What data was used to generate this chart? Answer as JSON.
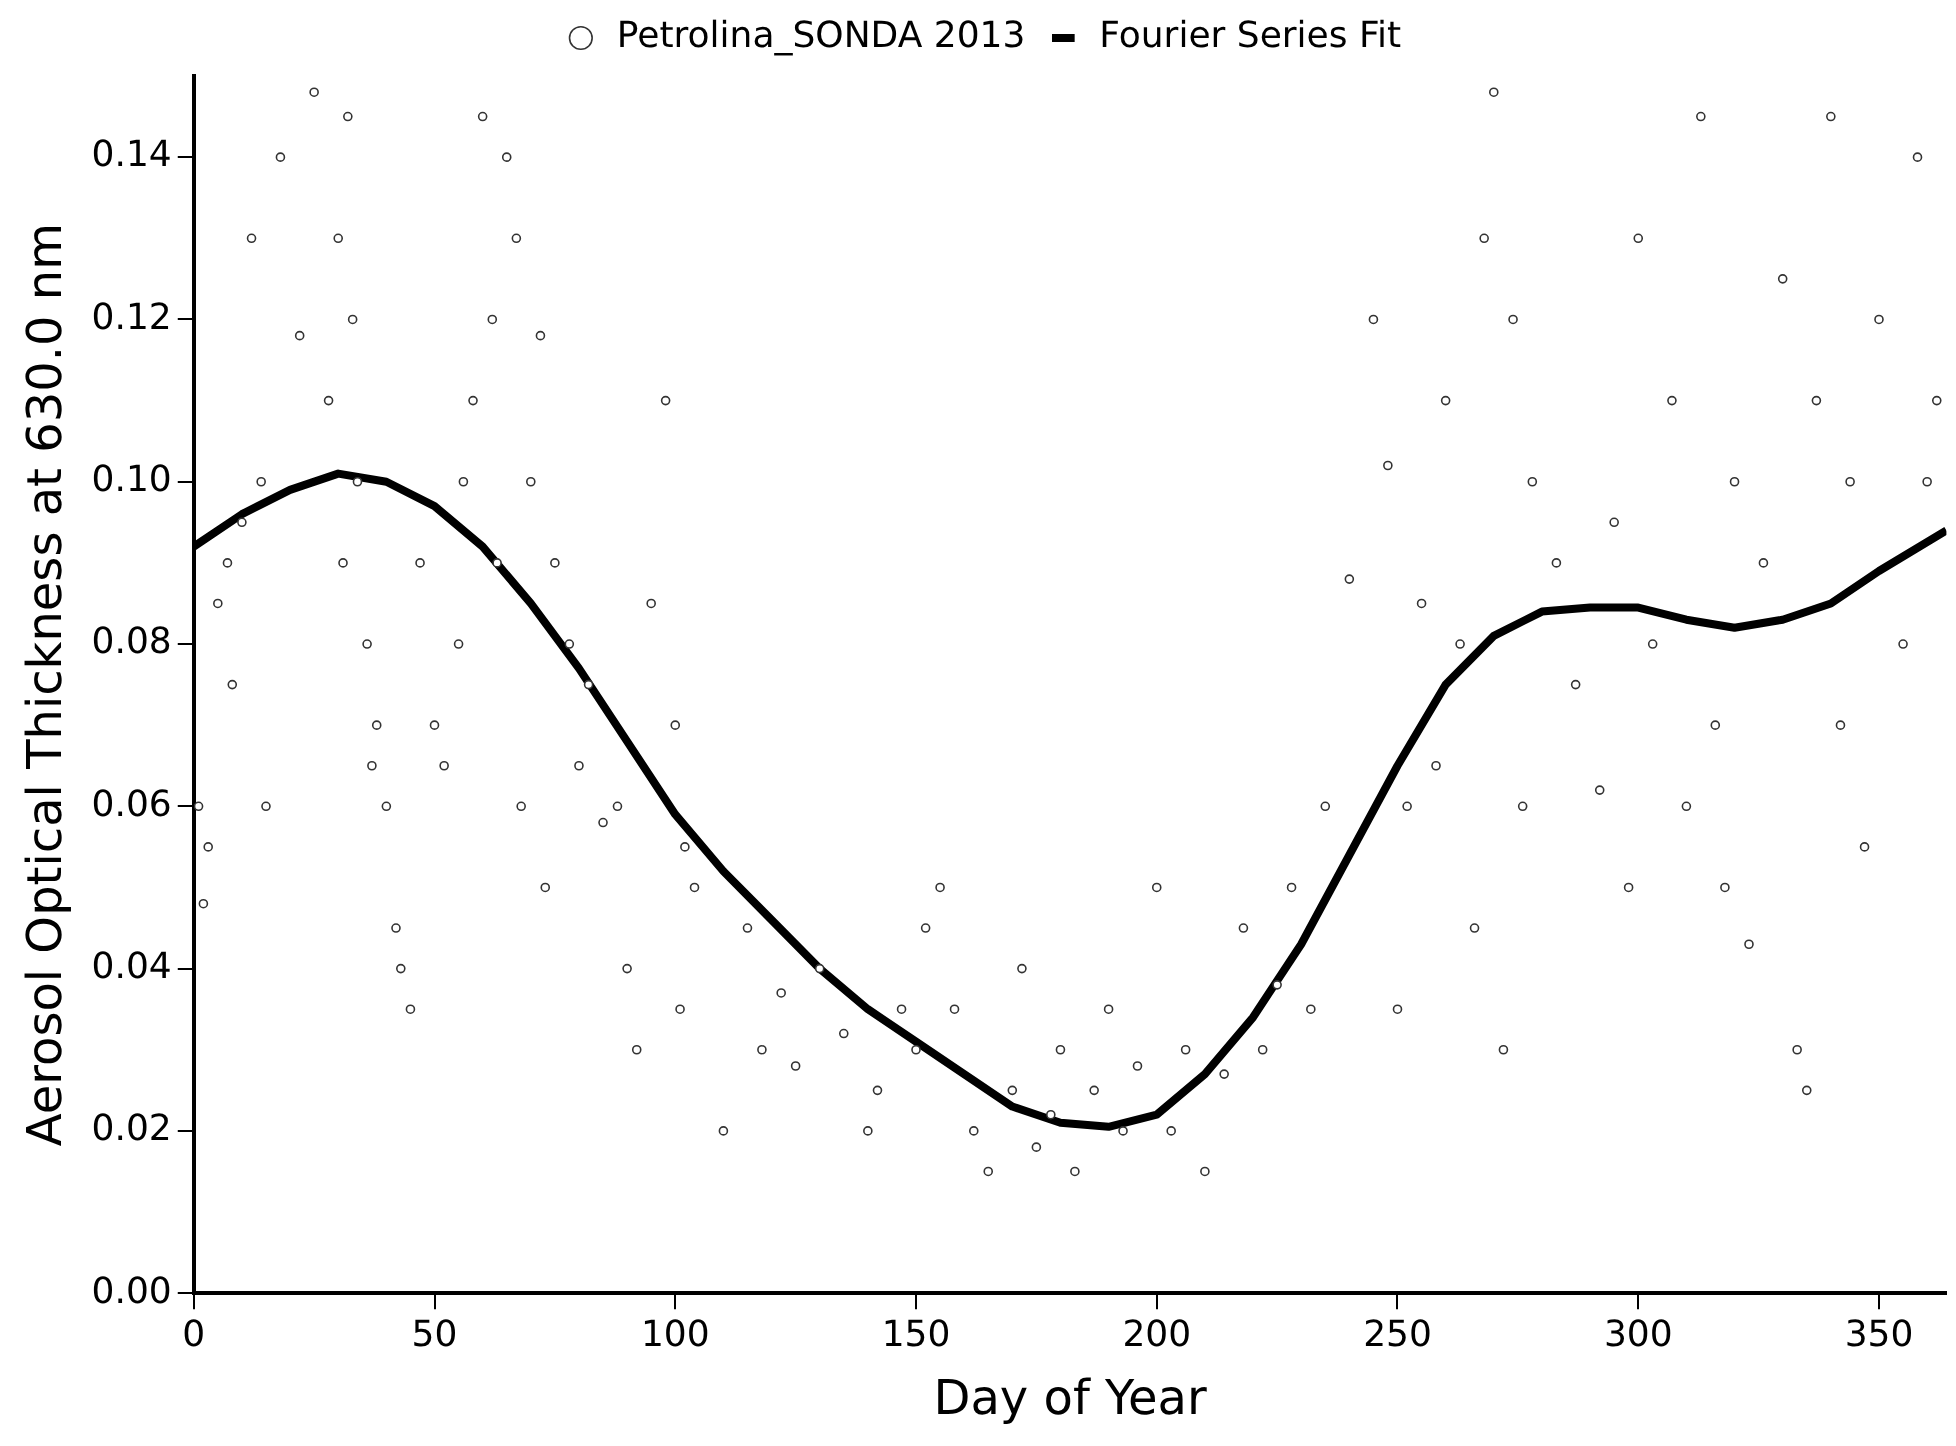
{
  "chart_data": {
    "type": "scatter",
    "xlabel": "Day of Year",
    "ylabel": "Aerosol Optical Thickness at 630.0 nm",
    "xlim": [
      0,
      364
    ],
    "xticks": [
      0,
      50,
      100,
      150,
      200,
      250,
      300,
      350
    ],
    "ylim": [
      0,
      0.15
    ],
    "yticks": [
      {
        "value": 0,
        "label": "0.00"
      },
      0.02,
      0.04,
      0.06,
      0.08,
      {
        "value": 0.1,
        "label": "0.10"
      },
      0.12,
      0.14
    ],
    "grid": false,
    "legend": "top",
    "marker": "circle",
    "series": [
      {
        "name": "Petrolina_SONDA 2013",
        "color": "#333333",
        "x": [
          1,
          2,
          3,
          5,
          7,
          8,
          10,
          12,
          14,
          15,
          18,
          22,
          25,
          28,
          30,
          31,
          32,
          33,
          34,
          36,
          37,
          38,
          40,
          42,
          43,
          45,
          47,
          50,
          52,
          55,
          56,
          58,
          60,
          62,
          63,
          65,
          67,
          68,
          70,
          72,
          73,
          75,
          78,
          80,
          82,
          85,
          88,
          90,
          92,
          95,
          98,
          100,
          101,
          102,
          104,
          110,
          115,
          118,
          122,
          125,
          130,
          135,
          140,
          142,
          147,
          150,
          152,
          155,
          158,
          162,
          165,
          170,
          172,
          175,
          178,
          180,
          183,
          187,
          190,
          193,
          196,
          200,
          203,
          206,
          210,
          214,
          218,
          222,
          225,
          228,
          232,
          235,
          240,
          245,
          248,
          250,
          252,
          255,
          258,
          260,
          263,
          266,
          268,
          270,
          272,
          274,
          276,
          278,
          283,
          287,
          292,
          295,
          298,
          300,
          303,
          307,
          310,
          313,
          316,
          318,
          320,
          323,
          326,
          330,
          333,
          335,
          337,
          340,
          342,
          344,
          347,
          350,
          355,
          358,
          360,
          362
        ],
        "values": [
          0.06,
          0.048,
          0.055,
          0.085,
          0.09,
          0.075,
          0.095,
          0.13,
          0.1,
          0.06,
          0.14,
          0.118,
          0.148,
          0.11,
          0.13,
          0.09,
          0.145,
          0.12,
          0.1,
          0.08,
          0.065,
          0.07,
          0.06,
          0.045,
          0.04,
          0.035,
          0.09,
          0.07,
          0.065,
          0.08,
          0.1,
          0.11,
          0.145,
          0.12,
          0.09,
          0.14,
          0.13,
          0.06,
          0.1,
          0.118,
          0.05,
          0.09,
          0.08,
          0.065,
          0.075,
          0.058,
          0.06,
          0.04,
          0.03,
          0.085,
          0.11,
          0.07,
          0.035,
          0.055,
          0.05,
          0.02,
          0.045,
          0.03,
          0.037,
          0.028,
          0.04,
          0.032,
          0.02,
          0.025,
          0.035,
          0.03,
          0.045,
          0.05,
          0.035,
          0.02,
          0.015,
          0.025,
          0.04,
          0.018,
          0.022,
          0.03,
          0.015,
          0.025,
          0.035,
          0.02,
          0.028,
          0.05,
          0.02,
          0.03,
          0.015,
          0.027,
          0.045,
          0.03,
          0.038,
          0.05,
          0.035,
          0.06,
          0.088,
          0.12,
          0.102,
          0.035,
          0.06,
          0.085,
          0.065,
          0.11,
          0.08,
          0.045,
          0.13,
          0.148,
          0.03,
          0.12,
          0.06,
          0.1,
          0.09,
          0.075,
          0.062,
          0.095,
          0.05,
          0.13,
          0.08,
          0.11,
          0.06,
          0.145,
          0.07,
          0.05,
          0.1,
          0.043,
          0.09,
          0.125,
          0.03,
          0.025,
          0.11,
          0.145,
          0.07,
          0.1,
          0.055,
          0.12,
          0.08,
          0.14,
          0.1,
          0.11
        ]
      },
      {
        "name": "Fourier Series Fit",
        "type": "line",
        "marker": "none",
        "line_style": "solid",
        "color": "#000000",
        "x": [
          0,
          10,
          20,
          30,
          40,
          50,
          60,
          70,
          80,
          90,
          100,
          110,
          120,
          130,
          140,
          150,
          160,
          170,
          180,
          190,
          200,
          210,
          220,
          230,
          240,
          250,
          260,
          270,
          280,
          290,
          300,
          310,
          320,
          330,
          340,
          350,
          364
        ],
        "values": [
          0.092,
          0.096,
          0.099,
          0.101,
          0.1,
          0.097,
          0.092,
          0.085,
          0.077,
          0.068,
          0.059,
          0.052,
          0.046,
          0.04,
          0.035,
          0.031,
          0.027,
          0.023,
          0.021,
          0.0205,
          0.022,
          0.027,
          0.034,
          0.043,
          0.054,
          0.065,
          0.075,
          0.081,
          0.084,
          0.0845,
          0.0845,
          0.083,
          0.082,
          0.083,
          0.085,
          0.089,
          0.094
        ]
      }
    ]
  }
}
